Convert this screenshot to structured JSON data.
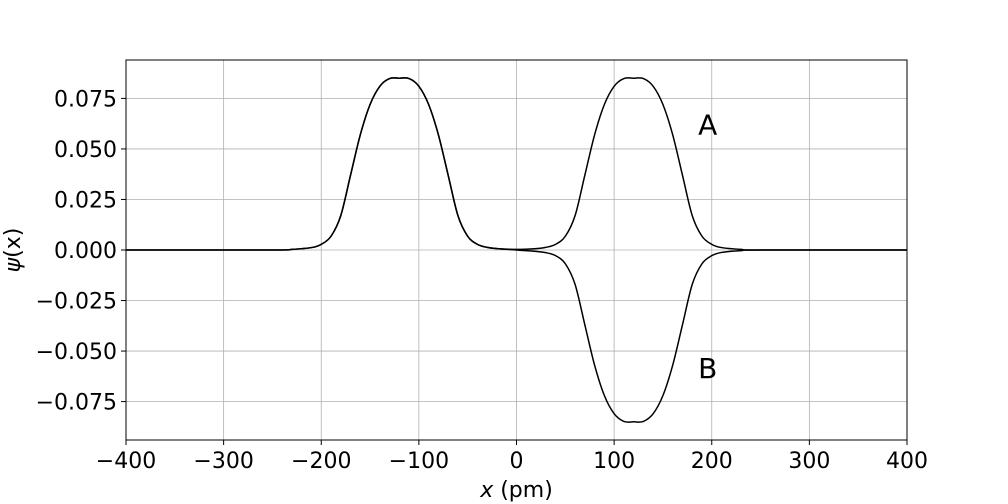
{
  "chart_data": {
    "type": "line",
    "title": "",
    "xlabel": {
      "var": "x",
      "unit": " (pm)"
    },
    "ylabel": {
      "var": "ψ",
      "arg": "(x)"
    },
    "xlim": [
      -400,
      400
    ],
    "ylim": [
      -0.094,
      0.094
    ],
    "grid": true,
    "xticks": [
      -400,
      -300,
      -200,
      -100,
      0,
      100,
      200,
      300,
      400
    ],
    "xtick_labels": [
      "−400",
      "−300",
      "−200",
      "−100",
      "0",
      "100",
      "200",
      "300",
      "400"
    ],
    "yticks": [
      -0.075,
      -0.05,
      -0.025,
      0,
      0.025,
      0.05,
      0.075
    ],
    "ytick_labels": [
      "−0.075",
      "−0.050",
      "−0.025",
      "0.000",
      "0.025",
      "0.050",
      "0.075"
    ],
    "series": [
      {
        "name": "A",
        "x": [
          -400,
          -250,
          -230,
          -210,
          -200,
          -190,
          -180,
          -170,
          -160,
          -150,
          -140,
          -130,
          -120,
          -110,
          -100,
          -90,
          -80,
          -70,
          -60,
          -50,
          -40,
          -30,
          -20,
          0,
          20,
          30,
          40,
          50,
          60,
          70,
          80,
          90,
          100,
          110,
          120,
          130,
          140,
          150,
          160,
          170,
          180,
          190,
          200,
          210,
          230,
          250,
          400
        ],
        "y": [
          0,
          0,
          0.0003,
          0.0012,
          0.0028,
          0.0068,
          0.017,
          0.037,
          0.057,
          0.072,
          0.081,
          0.0848,
          0.085,
          0.0848,
          0.081,
          0.072,
          0.057,
          0.037,
          0.017,
          0.0068,
          0.0028,
          0.0013,
          0.0007,
          0.0003,
          0.0007,
          0.0013,
          0.0028,
          0.0068,
          0.017,
          0.037,
          0.057,
          0.072,
          0.081,
          0.0848,
          0.085,
          0.0848,
          0.081,
          0.072,
          0.057,
          0.037,
          0.017,
          0.0068,
          0.0028,
          0.0012,
          0.0003,
          0,
          0
        ]
      },
      {
        "name": "B",
        "x": [
          -400,
          -250,
          -230,
          -210,
          -200,
          -190,
          -180,
          -170,
          -160,
          -150,
          -140,
          -130,
          -120,
          -110,
          -100,
          -90,
          -80,
          -70,
          -60,
          -50,
          -40,
          -30,
          -20,
          0,
          20,
          30,
          40,
          50,
          60,
          70,
          80,
          90,
          100,
          110,
          120,
          130,
          140,
          150,
          160,
          170,
          180,
          190,
          200,
          210,
          230,
          250,
          400
        ],
        "y": [
          0,
          0,
          0.0003,
          0.0012,
          0.0028,
          0.0068,
          0.017,
          0.037,
          0.057,
          0.072,
          0.081,
          0.0848,
          0.085,
          0.0848,
          0.081,
          0.072,
          0.057,
          0.037,
          0.017,
          0.0068,
          0.0028,
          0.0013,
          0.0007,
          0,
          -0.0007,
          -0.0013,
          -0.0028,
          -0.0068,
          -0.017,
          -0.037,
          -0.057,
          -0.072,
          -0.081,
          -0.0848,
          -0.085,
          -0.0848,
          -0.081,
          -0.072,
          -0.057,
          -0.037,
          -0.017,
          -0.0068,
          -0.0028,
          -0.0012,
          -0.0003,
          0,
          0
        ]
      }
    ],
    "annotations": [
      {
        "text": "A",
        "x": 186,
        "y": 0.062
      },
      {
        "text": "B",
        "x": 186,
        "y": -0.0585
      }
    ]
  }
}
